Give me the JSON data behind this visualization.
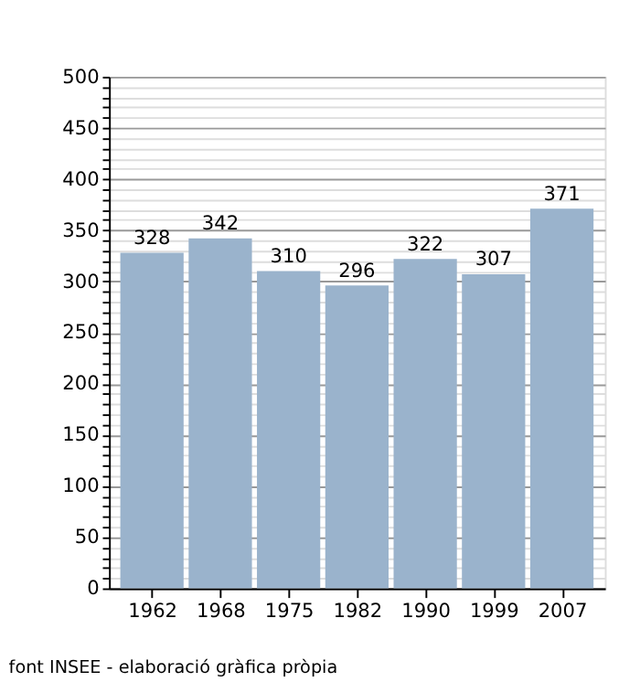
{
  "chart_data": {
    "type": "bar",
    "categories": [
      "1962",
      "1968",
      "1975",
      "1982",
      "1990",
      "1999",
      "2007"
    ],
    "values": [
      328,
      342,
      310,
      296,
      322,
      307,
      371
    ],
    "color": "#9ab3cc",
    "data_labels": true,
    "ylim": [
      0,
      500
    ],
    "yticks": [
      0,
      {
        "value": 10,
        "label": null
      },
      {
        "value": 20,
        "label": null
      },
      {
        "value": 30,
        "label": null
      },
      {
        "value": 40,
        "label": null
      },
      50,
      {
        "value": 60,
        "label": null
      },
      {
        "value": 70,
        "label": null
      },
      {
        "value": 80,
        "label": null
      },
      {
        "value": 90,
        "label": null
      },
      100,
      {
        "value": 110,
        "label": null
      },
      {
        "value": 120,
        "label": null
      },
      {
        "value": 130,
        "label": null
      },
      {
        "value": 140,
        "label": null
      },
      150,
      {
        "value": 160,
        "label": null
      },
      {
        "value": 170,
        "label": null
      },
      {
        "value": 180,
        "label": null
      },
      {
        "value": 190,
        "label": null
      },
      200,
      {
        "value": 210,
        "label": null
      },
      {
        "value": 220,
        "label": null
      },
      {
        "value": 230,
        "label": null
      },
      {
        "value": 240,
        "label": null
      },
      250,
      {
        "value": 260,
        "label": null
      },
      {
        "value": 270,
        "label": null
      },
      {
        "value": 280,
        "label": null
      },
      {
        "value": 290,
        "label": null
      },
      300,
      {
        "value": 310,
        "label": null
      },
      {
        "value": 320,
        "label": null
      },
      {
        "value": 330,
        "label": null
      },
      {
        "value": 340,
        "label": null
      },
      350,
      {
        "value": 360,
        "label": null
      },
      {
        "value": 370,
        "label": null
      },
      {
        "value": 380,
        "label": null
      },
      {
        "value": 390,
        "label": null
      },
      400,
      {
        "value": 410,
        "label": null
      },
      {
        "value": 420,
        "label": null
      },
      {
        "value": 430,
        "label": null
      },
      {
        "value": 440,
        "label": null
      },
      450,
      {
        "value": 460,
        "label": null
      },
      {
        "value": 470,
        "label": null
      },
      {
        "value": 480,
        "label": null
      },
      {
        "value": 490,
        "label": null
      },
      500
    ],
    "grid": "y",
    "legend": false,
    "annotations": [
      "font INSEE - elaboració gràfica pròpia"
    ]
  }
}
